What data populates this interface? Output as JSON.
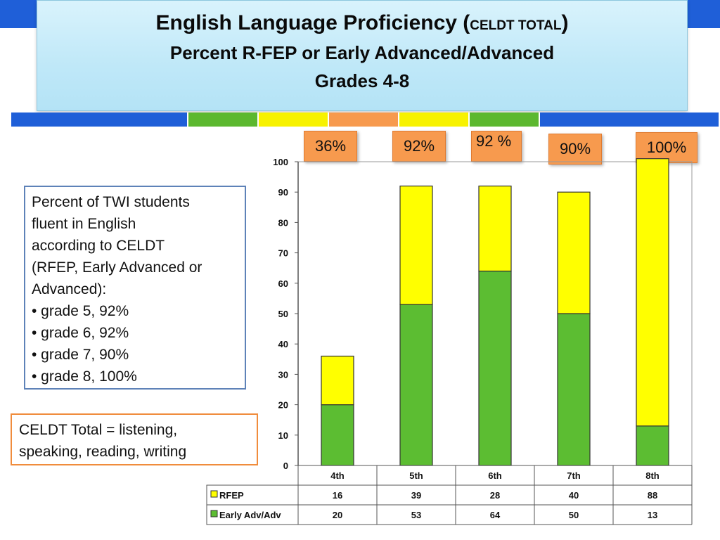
{
  "header": {
    "title_main": "English Language Proficiency (",
    "title_small": "CELDT TOTAL",
    "title_close": ")",
    "subtitle1": "Percent R-FEP or Early Advanced/Advanced",
    "subtitle2": "Grades 4-8"
  },
  "colors": {
    "band": [
      "#1f5fd8",
      "#5cb82f",
      "#f7f200",
      "#f79a4e",
      "#f7f200",
      "#5cb82f",
      "#1f5fd8"
    ],
    "rfep": "#ffff00",
    "early_adv": "#5cbd32",
    "callout": "#f79a4e"
  },
  "info_box": {
    "lines": [
      "Percent of TWI students",
      "fluent in English",
      "according to CELDT",
      "(RFEP, Early Advanced or",
      "Advanced):",
      "• grade 5, 92%",
      "• grade 6, 92%",
      "• grade 7, 90%",
      "• grade 8, 100%"
    ]
  },
  "note_box": {
    "lines": [
      "CELDT Total = listening,",
      "speaking, reading, writing"
    ]
  },
  "callouts": [
    "36%",
    "92%",
    "92 %",
    "90%",
    "100%"
  ],
  "chart_data": {
    "type": "bar",
    "stacked": true,
    "categories": [
      "4th",
      "5th",
      "6th",
      "7th",
      "8th"
    ],
    "series": [
      {
        "name": "Early Adv/Adv",
        "values": [
          20,
          53,
          64,
          50,
          13
        ],
        "color": "#5cbd32"
      },
      {
        "name": "RFEP",
        "values": [
          16,
          39,
          28,
          40,
          88
        ],
        "color": "#ffff00"
      }
    ],
    "ylim": [
      0,
      100
    ],
    "yticks": [
      0,
      10,
      20,
      30,
      40,
      50,
      60,
      70,
      80,
      90,
      100
    ],
    "grid": false,
    "data_table": {
      "rows": [
        {
          "label": "RFEP",
          "values": [
            "16",
            "39",
            "28",
            "40",
            "88"
          ],
          "color": "#ffff00"
        },
        {
          "label": "Early Adv/Adv",
          "values": [
            "20",
            "53",
            "64",
            "50",
            "13"
          ],
          "color": "#5cbd32"
        }
      ]
    }
  }
}
